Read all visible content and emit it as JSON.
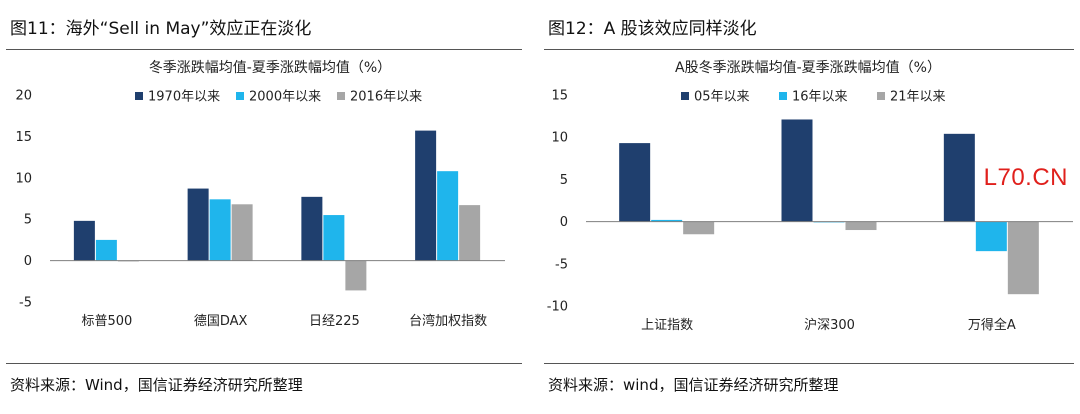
{
  "charts": [
    {
      "fig_title": "图11：海外“Sell in May”效应正在淡化",
      "source": "资料来源：Wind，国信证券经济研究所整理",
      "chart_data": {
        "type": "bar",
        "title": "冬季涨跌幅均值-夏季涨跌幅均值（%）",
        "categories": [
          "标普500",
          "德国DAX",
          "日经225",
          "台湾加权指数"
        ],
        "series": [
          {
            "name": "1970年以来",
            "color": "#1f3f6e",
            "values": [
              4.8,
              8.7,
              7.7,
              15.7
            ]
          },
          {
            "name": "2000年以来",
            "color": "#1fb5ec",
            "values": [
              2.5,
              7.4,
              5.5,
              10.8
            ]
          },
          {
            "name": "2016年以来",
            "color": "#a6a6a6",
            "values": [
              -0.1,
              6.8,
              -3.6,
              6.7
            ]
          }
        ],
        "ylim": [
          -5,
          20
        ],
        "yticks": [
          -5,
          0,
          5,
          10,
          15,
          20
        ],
        "legend": "top"
      }
    },
    {
      "fig_title": "图12：A 股该效应同样淡化",
      "source": "资料来源：wind，国信证券经济研究所整理",
      "watermark": "L70.CN",
      "chart_data": {
        "type": "bar",
        "title": "A股冬季涨跌幅均值-夏季涨跌幅均值（%）",
        "categories": [
          "上证指数",
          "沪深300",
          "万得全A"
        ],
        "series": [
          {
            "name": "05年以来",
            "color": "#1f3f6e",
            "values": [
              9.3,
              12.1,
              10.4
            ]
          },
          {
            "name": "16年以来",
            "color": "#1fb5ec",
            "values": [
              0.2,
              0.0,
              -3.5
            ]
          },
          {
            "name": "21年以来",
            "color": "#a6a6a6",
            "values": [
              -1.5,
              -1.0,
              -8.6
            ]
          }
        ],
        "ylim": [
          -10,
          15
        ],
        "yticks": [
          -10,
          -5,
          0,
          5,
          10,
          15
        ],
        "legend": "top"
      }
    }
  ]
}
